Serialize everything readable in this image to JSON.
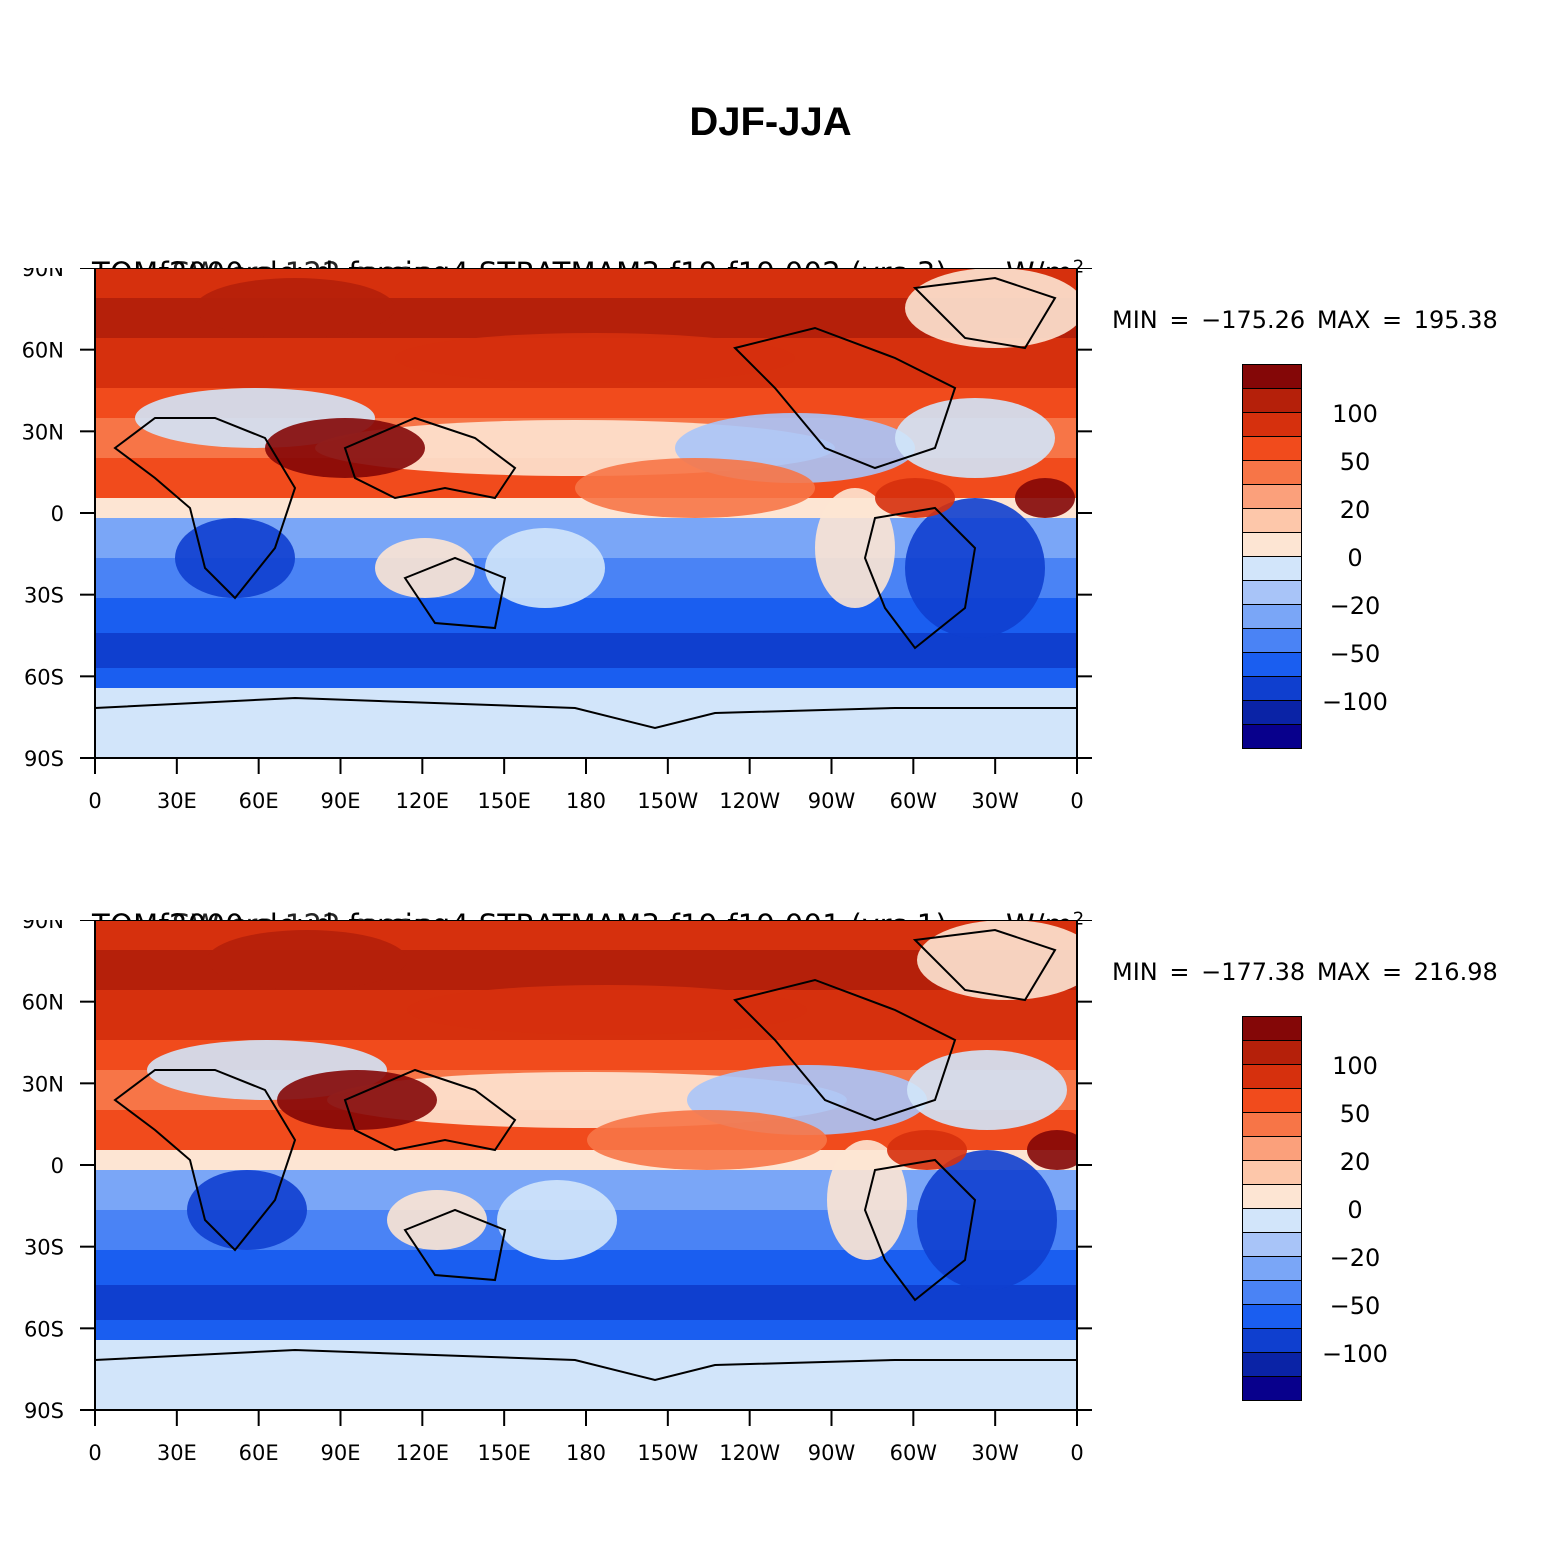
{
  "figure": {
    "title": "DJF-JJA"
  },
  "axes": {
    "y_ticks": [
      "90N",
      "60N",
      "30N",
      "0",
      "30S",
      "60S",
      "90S"
    ],
    "x_ticks": [
      "0",
      "30E",
      "60E",
      "90E",
      "120E",
      "150E",
      "180",
      "150W",
      "120W",
      "90W",
      "60W",
      "30W",
      "0"
    ]
  },
  "colorbar": {
    "colors": [
      "#08008c",
      "#0a23a6",
      "#0f3fcf",
      "#1a5ef0",
      "#4a83f5",
      "#7aa6f7",
      "#a8c4f8",
      "#d2e5fa",
      "#fde5d3",
      "#fdc7aa",
      "#fba07b",
      "#f77547",
      "#f14b1c",
      "#d6300d",
      "#b5200a",
      "#840707"
    ],
    "labels": [
      "100",
      "50",
      "20",
      "0",
      "−20",
      "−50",
      "−100"
    ]
  },
  "panels": [
    {
      "title": "TOMf2000.cloud_forcing4.STRATMAM3.f19.f19.002 (yrs 3)",
      "overprint": "SW cre 122 mean",
      "units": "W/m",
      "units_superscript": "2",
      "minmax": "MIN = −175.26 MAX = 195.38"
    },
    {
      "title": "TOMf2000.cloud_forcing4.STRATMAM3.f19.f19.001 (yrs 1)",
      "overprint": "SW cre 122 mean",
      "units": "W/m",
      "units_superscript": "2",
      "minmax": "MIN = −177.38 MAX = 216.98"
    }
  ]
}
